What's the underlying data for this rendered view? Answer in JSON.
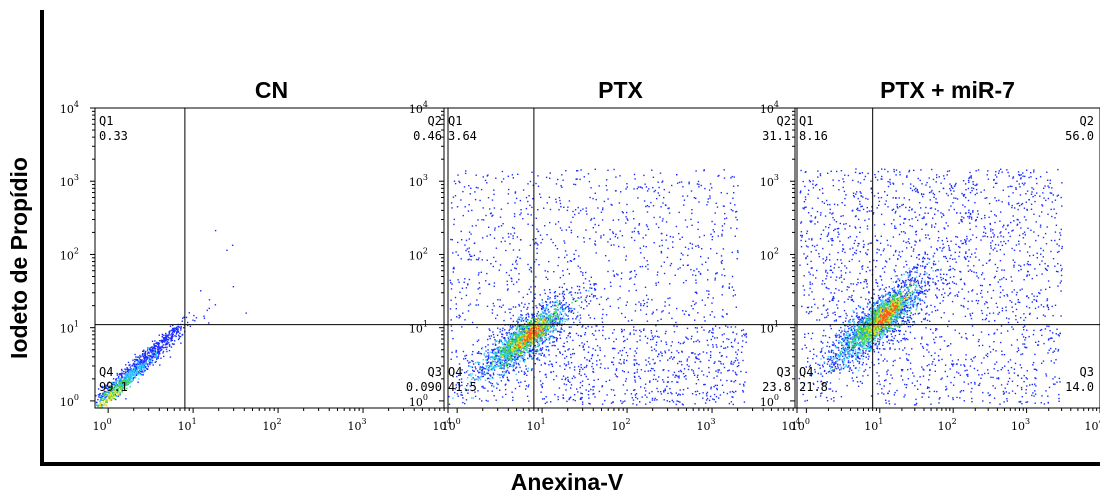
{
  "figure": {
    "ylabel": "Iodeto de Propídio",
    "xlabel": "Anexina-V"
  },
  "colors": {
    "low": "#1a2cff",
    "mid": "#2fd0ff",
    "mid2": "#3bd63b",
    "high": "#f0e020",
    "peak": "#ff5a1a",
    "axis": "#000000"
  },
  "chart_data": [
    {
      "type": "scatter",
      "subtype": "flow-cytometry-density",
      "title": "CN",
      "x_scale": "log",
      "y_scale": "log",
      "xlim": [
        0.7,
        10000
      ],
      "ylim": [
        0.8,
        10000
      ],
      "x_ticks": [
        "10^0",
        "10^1",
        "10^2",
        "10^3",
        "10^4"
      ],
      "y_ticks": [
        "10^0",
        "10^1",
        "10^2",
        "10^3",
        "10^4"
      ],
      "gate": {
        "x": 8,
        "y": 11
      },
      "quadrants": [
        {
          "name": "Q1",
          "percent": "0.33"
        },
        {
          "name": "Q2",
          "percent": "0.46"
        },
        {
          "name": "Q3",
          "percent": "0.090"
        },
        {
          "name": "Q4",
          "percent": "99.1"
        }
      ]
    },
    {
      "type": "scatter",
      "subtype": "flow-cytometry-density",
      "title": "PTX",
      "x_scale": "log",
      "y_scale": "log",
      "xlim": [
        0.7,
        10000
      ],
      "ylim": [
        0.8,
        10000
      ],
      "x_ticks": [
        "10^0",
        "10^1",
        "10^2",
        "10^3",
        "10^4"
      ],
      "y_ticks": [
        "10^0",
        "10^1",
        "10^2",
        "10^3",
        "10^4"
      ],
      "gate": {
        "x": 8,
        "y": 11
      },
      "quadrants": [
        {
          "name": "Q1",
          "percent": "3.64"
        },
        {
          "name": "Q2",
          "percent": "31.1"
        },
        {
          "name": "Q3",
          "percent": "23.8"
        },
        {
          "name": "Q4",
          "percent": "41.5"
        }
      ]
    },
    {
      "type": "scatter",
      "subtype": "flow-cytometry-density",
      "title": "PTX + miR-7",
      "x_scale": "log",
      "y_scale": "log",
      "xlim": [
        0.7,
        10000
      ],
      "ylim": [
        0.8,
        10000
      ],
      "x_ticks": [
        "10^0",
        "10^1",
        "10^2",
        "10^3",
        "10^4"
      ],
      "y_ticks": [
        "10^0",
        "10^1",
        "10^2",
        "10^3",
        "10^4"
      ],
      "gate": {
        "x": 8,
        "y": 11
      },
      "quadrants": [
        {
          "name": "Q1",
          "percent": "8.16"
        },
        {
          "name": "Q2",
          "percent": "56.0"
        },
        {
          "name": "Q3",
          "percent": "14.0"
        },
        {
          "name": "Q4",
          "percent": "21.8"
        }
      ]
    }
  ]
}
